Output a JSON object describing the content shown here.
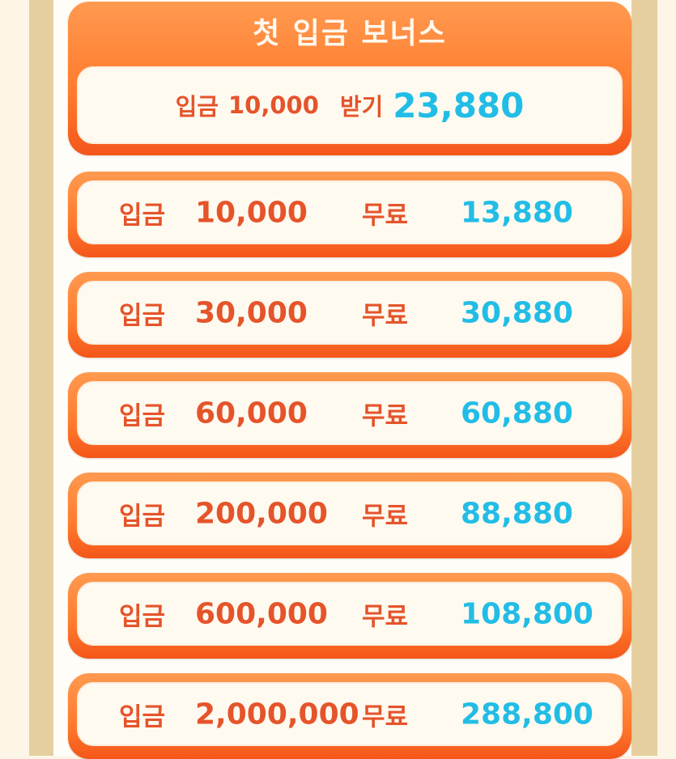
{
  "colors": {
    "accent_orange": "#ff7a2c",
    "text_orange": "#e5542a",
    "value_blue": "#22bde6",
    "frame_tan": "#e6cf9f"
  },
  "header": {
    "title": "첫 입금 보너스",
    "deposit_label": "입금",
    "deposit_amount": "10,000",
    "receive_label": "받기",
    "receive_amount": "23,880"
  },
  "rows": [
    {
      "deposit_label": "입금",
      "deposit": "10,000",
      "free_label": "무료",
      "free": "13,880"
    },
    {
      "deposit_label": "입금",
      "deposit": "30,000",
      "free_label": "무료",
      "free": "30,880"
    },
    {
      "deposit_label": "입금",
      "deposit": "60,000",
      "free_label": "무료",
      "free": "60,880"
    },
    {
      "deposit_label": "입금",
      "deposit": "200,000",
      "free_label": "무료",
      "free": "88,880"
    },
    {
      "deposit_label": "입금",
      "deposit": "600,000",
      "free_label": "무료",
      "free": "108,800"
    },
    {
      "deposit_label": "입금",
      "deposit": "2,000,000",
      "free_label": "무료",
      "free": "288,800"
    }
  ]
}
